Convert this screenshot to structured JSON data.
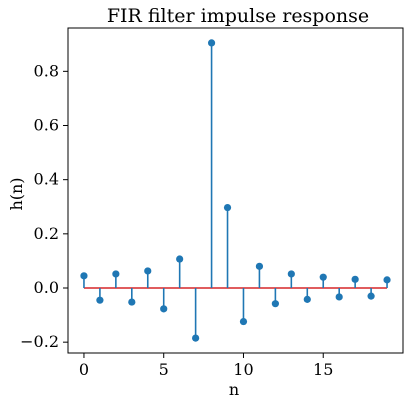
{
  "chart_data": {
    "type": "stem",
    "title": "FIR filter impulse response",
    "xlabel": "n",
    "ylabel": "h(n)",
    "xlim": [
      -1,
      20
    ],
    "ylim": [
      -0.24,
      0.96
    ],
    "xticks": [
      0,
      5,
      10,
      15
    ],
    "yticks": [
      -0.2,
      0.0,
      0.2,
      0.4,
      0.6,
      0.8
    ],
    "ytick_labels": [
      "−0.2",
      "0.0",
      "0.2",
      "0.4",
      "0.6",
      "0.8"
    ],
    "x": [
      0,
      1,
      2,
      3,
      4,
      5,
      6,
      7,
      8,
      9,
      10,
      11,
      12,
      13,
      14,
      15,
      16,
      17,
      18,
      19
    ],
    "values": [
      0.045,
      -0.045,
      0.052,
      -0.052,
      0.063,
      -0.077,
      0.107,
      -0.185,
      0.905,
      0.297,
      -0.124,
      0.08,
      -0.058,
      0.052,
      -0.042,
      0.04,
      -0.033,
      0.032,
      -0.03,
      0.03
    ],
    "colors": {
      "stem": "#1f77b4",
      "baseline": "#d62728"
    }
  }
}
